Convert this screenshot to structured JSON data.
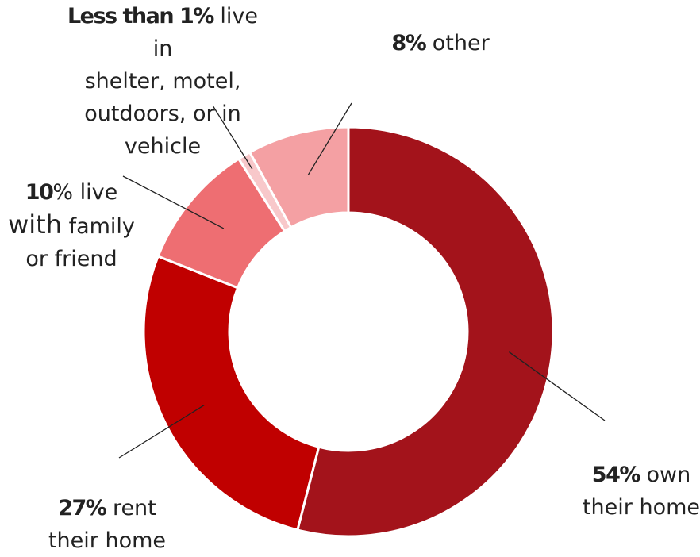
{
  "chart_data": {
    "type": "donut",
    "slices": [
      {
        "value": 54,
        "color": "#A3131B"
      },
      {
        "value": 27,
        "color": "#C00000"
      },
      {
        "value": 10,
        "color": "#EE6E72"
      },
      {
        "value": 1,
        "color": "#F8C8CA"
      },
      {
        "value": 8,
        "color": "#F4A0A3"
      }
    ],
    "labels": {
      "own": {
        "bold": "54%",
        "l1": " own",
        "l2": "their home"
      },
      "rent": {
        "bold": "27%",
        "l1": " rent",
        "l2": "their home"
      },
      "family": {
        "bold": "10",
        "t1": "% live",
        "big": "with",
        "t2": " family",
        "l3": "or friend"
      },
      "shelter": {
        "bold": "Less than 1%",
        "l1": " live in",
        "l2": "shelter, motel,",
        "l3": "outdoors, or in",
        "l4": "vehicle"
      },
      "other": {
        "bold": "8%",
        "l1": " other"
      }
    }
  }
}
